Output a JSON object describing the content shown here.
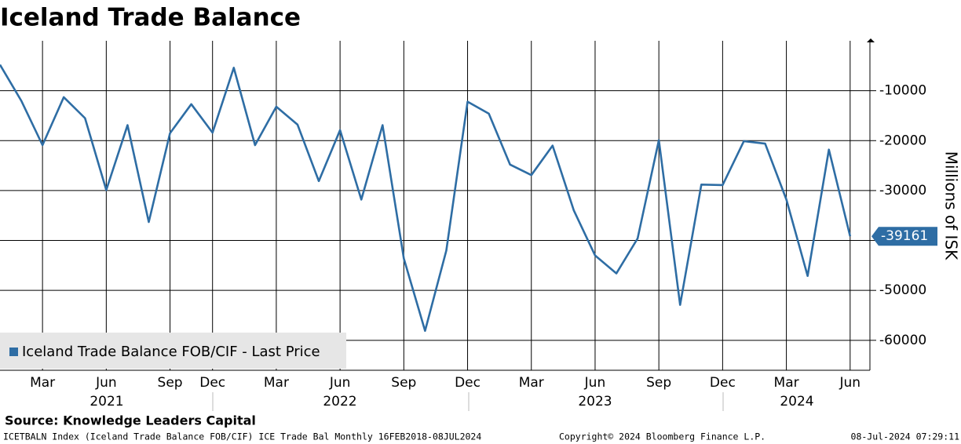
{
  "chart_data": {
    "type": "line",
    "title": "Iceland Trade Balance",
    "source": "Source: Knowledge Leaders Capital",
    "footer_left": "ICETBALN Index (Iceland Trade Balance FOB/CIF) ICE Trade Bal  Monthly 16FEB2018-08JUL2024",
    "footer_center": "Copyright© 2024 Bloomberg Finance L.P.",
    "footer_right": "08-Jul-2024 07:29:11",
    "y_label": "Millions of ISK",
    "categories": [
      null,
      null,
      "Mar",
      null,
      null,
      "Jun",
      null,
      null,
      "Sep",
      null,
      "Dec",
      null,
      null,
      "Mar",
      null,
      null,
      "Jun",
      null,
      null,
      "Sep",
      null,
      null,
      "Dec",
      null,
      null,
      "Mar",
      null,
      null,
      "Jun",
      null,
      null,
      "Sep",
      null,
      null,
      "Dec",
      null,
      null,
      "Mar",
      null,
      null,
      "Jun"
    ],
    "years": [
      "2021",
      "2022",
      "2023",
      "2024"
    ],
    "series": [
      {
        "name": "Iceland Trade Balance FOB/CIF - Last Price",
        "color": "#2e6da4",
        "values": [
          -4800,
          -12000,
          -20900,
          -11300,
          -15500,
          -29900,
          -16900,
          -36300,
          -18500,
          -12700,
          -18400,
          -5400,
          -20900,
          -13200,
          -16800,
          -28100,
          -17900,
          -31800,
          -16900,
          -43600,
          -58100,
          -42000,
          -12200,
          -14600,
          -24800,
          -26900,
          -21000,
          -34000,
          -43000,
          -46600,
          -39600,
          -19900,
          -52900,
          -28800,
          -28900,
          -20100,
          -20600,
          -31800,
          -47100,
          -21800,
          -39161
        ]
      }
    ],
    "ylim": [
      -66000,
      0
    ],
    "yticks": [
      -10000,
      -20000,
      -30000,
      -40000,
      -50000,
      -60000
    ],
    "grid": true
  }
}
